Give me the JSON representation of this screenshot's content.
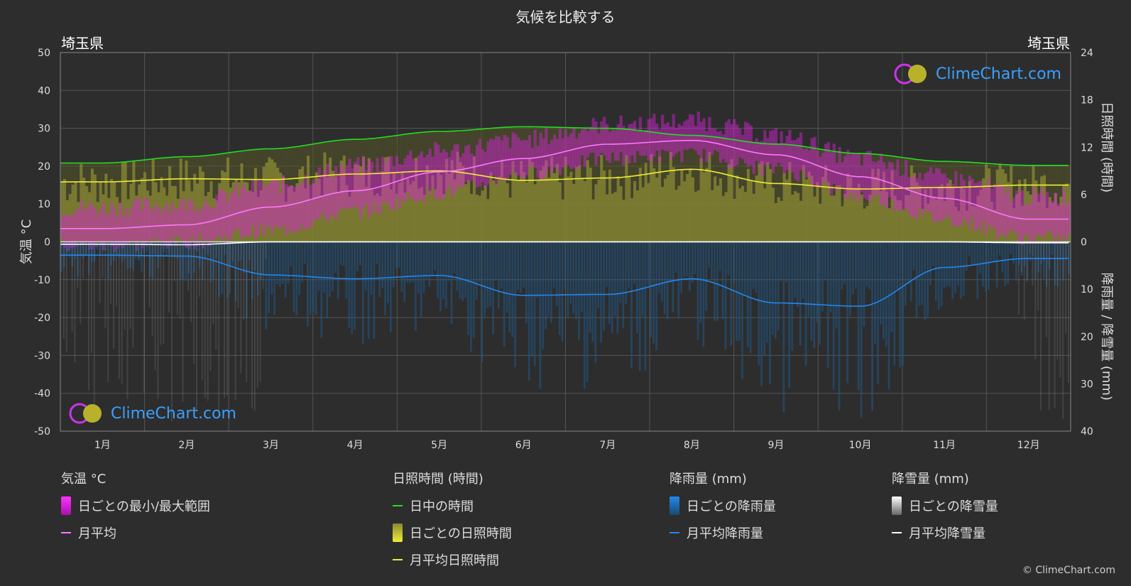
{
  "title": "気候を比較する",
  "location_left": "埼玉県",
  "location_right": "埼玉県",
  "copyright": "© ClimeChart.com",
  "watermark": "ClimeChart.com",
  "axes": {
    "left_label": "気温 °C",
    "right_top_label": "日照時間 (時間)",
    "right_bottom_label": "降雨量 / 降雪量 (mm)",
    "temp_ticks": [
      "50",
      "40",
      "30",
      "20",
      "10",
      "0",
      "-10",
      "-20",
      "-30",
      "-40",
      "-50"
    ],
    "sun_ticks": [
      "24",
      "18",
      "12",
      "6",
      "0"
    ],
    "precip_ticks": [
      "10",
      "20",
      "30",
      "40"
    ]
  },
  "legend": {
    "temp": {
      "title": "気温 °C",
      "range": "日ごとの最小/最大範囲",
      "avg": "月平均"
    },
    "sun": {
      "title": "日照時間 (時間)",
      "daylight": "日中の時間",
      "daily": "日ごとの日照時間",
      "avg": "月平均日照時間"
    },
    "rain": {
      "title": "降雨量 (mm)",
      "daily": "日ごとの降雨量",
      "avg": "月平均降雨量"
    },
    "snow": {
      "title": "降雪量 (mm)",
      "daily": "日ごとの降雪量",
      "avg": "月平均降雪量"
    }
  },
  "colors": {
    "daylight": "#22dd22",
    "sunshine": "#eeee33",
    "temp_avg": "#ff77ff",
    "temp_range": "#dd22dd",
    "rain": "#2288ee",
    "snow": "#ffffff",
    "watermark": "#3aa0ff"
  },
  "chart_data": {
    "type": "line",
    "categories": [
      "1月",
      "2月",
      "3月",
      "4月",
      "5月",
      "6月",
      "7月",
      "8月",
      "9月",
      "10月",
      "11月",
      "12月"
    ],
    "ylim_temp": [
      -50,
      50
    ],
    "ylim_sun": [
      0,
      24
    ],
    "ylim_precip": [
      0,
      40
    ],
    "grid": true,
    "series": [
      {
        "name": "日中の時間",
        "axis": "sun",
        "values": [
          10.0,
          10.8,
          11.8,
          13.0,
          14.0,
          14.6,
          14.4,
          13.5,
          12.4,
          11.2,
          10.2,
          9.7
        ]
      },
      {
        "name": "月平均日照時間",
        "axis": "sun",
        "values": [
          7.6,
          8.0,
          7.9,
          8.6,
          9.0,
          7.8,
          8.1,
          9.2,
          7.4,
          6.7,
          6.9,
          7.2
        ]
      },
      {
        "name": "月平均",
        "axis": "temp",
        "values": [
          3.5,
          4.5,
          9.2,
          13.5,
          18.5,
          22.0,
          25.8,
          26.8,
          23.0,
          17.2,
          11.5,
          6.0
        ]
      },
      {
        "name": "月平均降雨量",
        "axis": "precip",
        "values": [
          2.8,
          3.0,
          7.0,
          7.8,
          7.1,
          11.3,
          11.1,
          7.8,
          12.9,
          13.6,
          5.4,
          3.5
        ]
      },
      {
        "name": "月平均降雪量",
        "axis": "precip",
        "values": [
          0.5,
          0.6,
          0.0,
          0.0,
          0.0,
          0.0,
          0.0,
          0.0,
          0.0,
          0.0,
          0.0,
          0.2
        ]
      }
    ],
    "temp_range": {
      "name": "日ごとの最小/最大範囲",
      "min": [
        -1,
        0,
        3,
        8,
        13,
        18,
        22,
        23,
        19,
        12,
        6,
        1
      ],
      "max": [
        9,
        10,
        15,
        20,
        24,
        27,
        31,
        32,
        28,
        22,
        17,
        12
      ]
    }
  }
}
